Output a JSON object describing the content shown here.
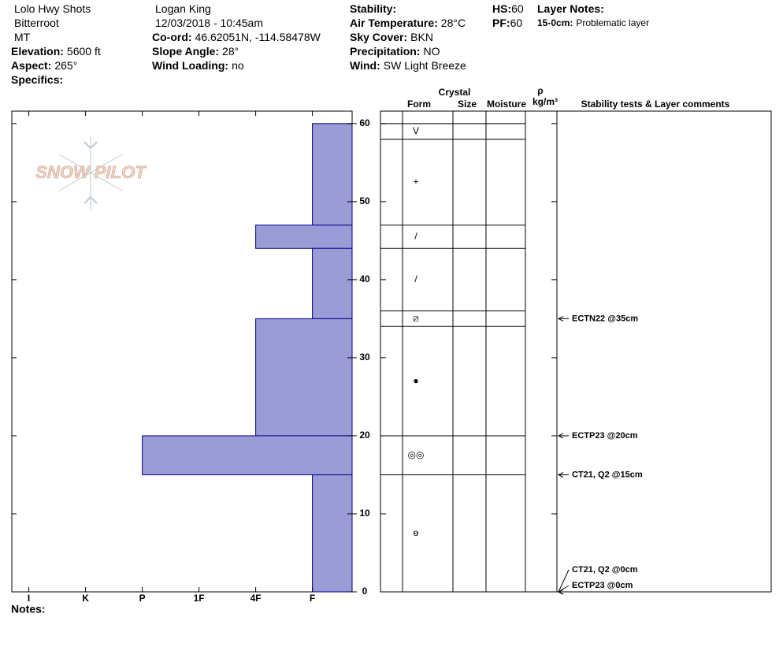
{
  "header": {
    "columns": [
      [
        {
          "value": "Lolo Hwy Shots"
        },
        {
          "value": "Bitterroot"
        },
        {
          "value": "MT"
        },
        {
          "label": "Elevation:",
          "value": "5600 ft"
        },
        {
          "label": "Aspect:",
          "value": "265°"
        },
        {
          "label": "Specifics:"
        }
      ],
      [
        {
          "value": "Logan King"
        },
        {
          "value": "12/03/2018 - 10:45am"
        },
        {
          "label": "Co-ord:",
          "value": "46.62051N, -114.58478W"
        },
        {
          "label": "Slope Angle:",
          "value": "28°"
        },
        {
          "label": "Wind Loading:",
          "value": "no"
        }
      ],
      [
        {
          "label": "Stability:"
        },
        {
          "label": "Air Temperature:",
          "value": "28°C"
        },
        {
          "label": "Sky Cover:",
          "value": "BKN"
        },
        {
          "label": "Precipitation:",
          "value": "NO"
        },
        {
          "label": "Wind:",
          "value": "SW Light Breeze"
        }
      ],
      [
        {
          "label": "HS:",
          "value": "60"
        },
        {
          "label": "PF:",
          "value": "60"
        }
      ],
      [
        {
          "label": "Layer Notes:"
        },
        {
          "label": "15-0cm:",
          "value": "Problematic layer"
        }
      ]
    ],
    "notes_label": "Notes:"
  },
  "chart_data": {
    "type": "hardness-profile",
    "logo": "SNOW PILOT",
    "color": "#9b9bd6",
    "edge_color": "#00008b",
    "ylim": [
      0,
      61.6
    ],
    "yticks": [
      0,
      10,
      20,
      30,
      40,
      50,
      60
    ],
    "xlim": [
      6.3,
      0.3
    ],
    "xticks": [
      {
        "value": 6,
        "label": "I"
      },
      {
        "value": 5,
        "label": "K"
      },
      {
        "value": 4,
        "label": "P"
      },
      {
        "value": 3,
        "label": "1F"
      },
      {
        "value": 2,
        "label": "4F"
      },
      {
        "value": 1,
        "label": "F"
      }
    ],
    "layers": [
      {
        "top": 60,
        "bottom": 47,
        "hardness": 1
      },
      {
        "top": 47,
        "bottom": 44,
        "hardness": 2
      },
      {
        "top": 44,
        "bottom": 35,
        "hardness": 1
      },
      {
        "top": 35,
        "bottom": 20,
        "hardness": 2
      },
      {
        "top": 20,
        "bottom": 15,
        "hardness": 4
      },
      {
        "top": 15,
        "bottom": 0,
        "hardness": 1
      }
    ],
    "columns": {
      "crystal": "Crystal",
      "form": "Form",
      "size": "Size",
      "moisture": "Moisture",
      "rho": "ρ",
      "density_unit": "kg/m³",
      "comments": "Stability tests & Layer comments"
    },
    "grains": [
      {
        "top": 60,
        "bottom": 58,
        "form": "V"
      },
      {
        "top": 58,
        "bottom": 47,
        "form": "+"
      },
      {
        "top": 47,
        "bottom": 44,
        "form": "/"
      },
      {
        "top": 44,
        "bottom": 36,
        "form": "/"
      },
      {
        "top": 36,
        "bottom": 34,
        "form": "⧄"
      },
      {
        "top": 34,
        "bottom": 20,
        "form": "●"
      },
      {
        "top": 20,
        "bottom": 15,
        "form": "◎◎"
      },
      {
        "top": 15,
        "bottom": 0,
        "form": "ө"
      }
    ],
    "tests": [
      {
        "depth": 35,
        "label": "ECTN22 @35cm"
      },
      {
        "depth": 20,
        "label": "ECTP23 @20cm"
      },
      {
        "depth": 15,
        "label": "CT21, Q2 @15cm"
      },
      {
        "depth": 0,
        "label": "CT21, Q2 @0cm"
      },
      {
        "depth": 0,
        "label": "ECTP23 @0cm"
      }
    ]
  }
}
